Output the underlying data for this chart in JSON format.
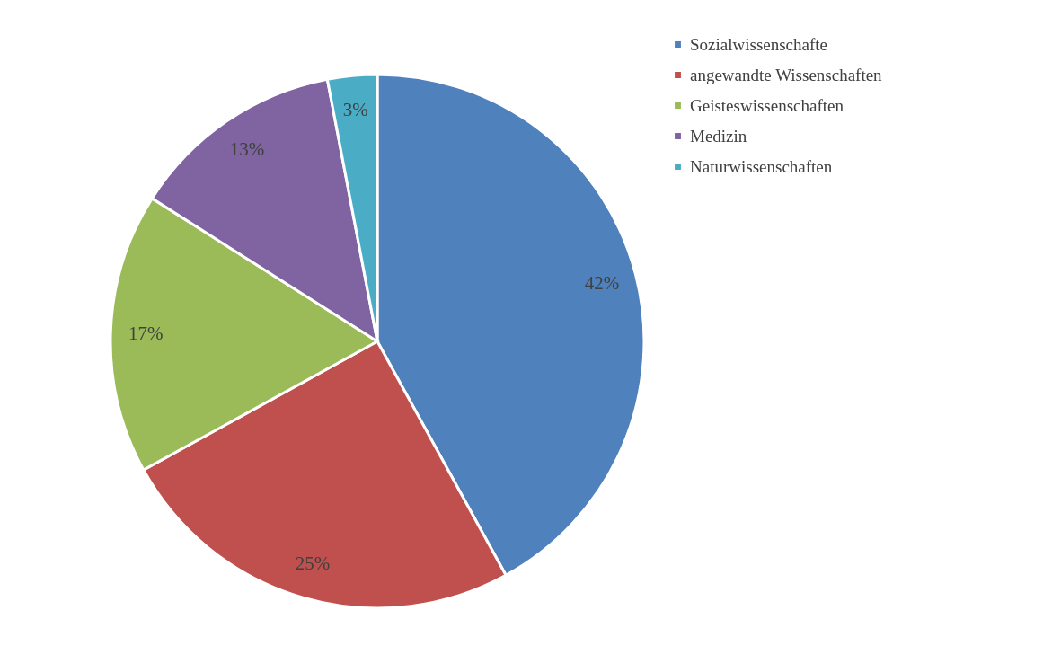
{
  "chart_data": {
    "type": "pie",
    "categories": [
      "Sozialwissenschafte",
      "angewandte Wissenschaften",
      "Geisteswissenschaften",
      "Medizin",
      "Naturwissenschaften"
    ],
    "values": [
      42,
      25,
      17,
      13,
      3
    ],
    "colors": [
      "#4f81bd",
      "#c0504d",
      "#9bbb59",
      "#8064a2",
      "#4bacc6"
    ],
    "value_labels": [
      "42%",
      "25%",
      "17%",
      "13%",
      "3%"
    ],
    "legend": "right"
  }
}
